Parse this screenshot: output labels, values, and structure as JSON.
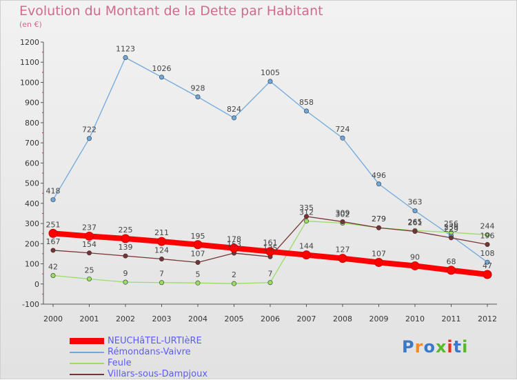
{
  "header": {
    "title": "Evolution du Montant de la Dette par Habitant",
    "unit": "(en €)"
  },
  "logo": {
    "text": "Proxiti",
    "letter_colors": [
      "#3a78c8",
      "#ff8a1c",
      "#3a78c8",
      "#5ab82e",
      "#e0301e",
      "#3a78c8",
      "#5ab82e"
    ]
  },
  "chart_data": {
    "type": "line",
    "x": [
      2000,
      2001,
      2002,
      2003,
      2004,
      2005,
      2006,
      2007,
      2008,
      2009,
      2010,
      2011,
      2012
    ],
    "ylim": [
      -100,
      1200
    ],
    "yticks": [
      -100,
      0,
      100,
      200,
      300,
      400,
      500,
      600,
      700,
      800,
      900,
      1000,
      1100,
      1200
    ],
    "grid": false,
    "legend_position": "bottom-left",
    "series": [
      {
        "name": "NEUCHâTEL-URTIèRE",
        "color": "#ff0000",
        "label_color": "#5b5bff",
        "values": [
          251,
          237,
          225,
          211,
          195,
          178,
          161,
          144,
          127,
          107,
          90,
          68,
          47
        ]
      },
      {
        "name": "Rémondans-Vaivre",
        "color": "#6fa8dc",
        "label_color": "#5b5bff",
        "values": [
          418,
          722,
          1123,
          1026,
          928,
          824,
          1005,
          858,
          724,
          496,
          363,
          239,
          108
        ]
      },
      {
        "name": "Feule",
        "color": "#99dd66",
        "label_color": "#5b5bff",
        "values": [
          42,
          25,
          9,
          7,
          5,
          2,
          7,
          312,
          302,
          279,
          265,
          256,
          244
        ]
      },
      {
        "name": "Villars-sous-Dampjoux",
        "color": "#773333",
        "label_color": "#5b5bff",
        "values": [
          167,
          154,
          139,
          124,
          107,
          153,
          135,
          335,
          309,
          279,
          261,
          229,
          196
        ]
      }
    ]
  }
}
